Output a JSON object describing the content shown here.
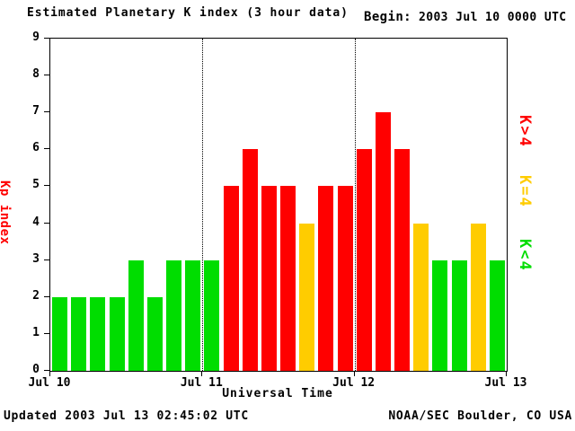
{
  "header": {
    "begin_label": "Begin:",
    "begin_value": "2003 Jul 10 0000 UTC"
  },
  "footer": {
    "updated": "Updated 2003 Jul 13 02:45:02 UTC",
    "source": "NOAA/SEC Boulder, CO USA"
  },
  "chart_data": {
    "type": "bar",
    "title": "Estimated Planetary K index (3 hour data)",
    "xlabel": "Universal Time",
    "ylabel": "Kp index",
    "ylabel_color": "#ff0000",
    "ylim": [
      0,
      9
    ],
    "yticks": [
      0,
      1,
      2,
      3,
      4,
      5,
      6,
      7,
      8,
      9
    ],
    "x_day_labels": [
      "Jul 10",
      "Jul 11",
      "Jul 12",
      "Jul 13"
    ],
    "bars_per_day": 8,
    "values": [
      2,
      2,
      2,
      2,
      3,
      2,
      3,
      3,
      3,
      5,
      6,
      5,
      5,
      4,
      5,
      5,
      6,
      7,
      6,
      4,
      3,
      3,
      4,
      3
    ],
    "color_rules": {
      "below_4": "#00dd00",
      "equal_4": "#ffcc00",
      "above_4": "#ff0000"
    },
    "legend": [
      {
        "label": "K>4",
        "color": "#ff0000"
      },
      {
        "label": "K=4",
        "color": "#ffcc00"
      },
      {
        "label": "K<4",
        "color": "#00dd00"
      }
    ],
    "day_divider_style": "dotted",
    "grid": false,
    "legend_position": "right-rotated"
  }
}
